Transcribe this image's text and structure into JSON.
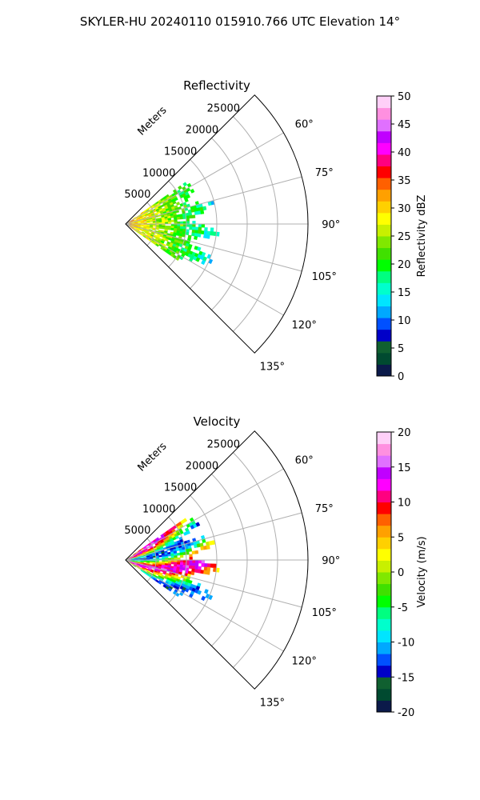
{
  "figure_title": "SKYLER-HU  20240110  015910.766 UTC Elevation 14°",
  "chart_data": [
    {
      "type": "ppi-sector",
      "title": "Reflectivity",
      "range_label": "Meters",
      "range_ticks": [
        5000,
        10000,
        15000,
        20000,
        25000
      ],
      "range_max": 30000,
      "azimuth_span": [
        45,
        135
      ],
      "azimuth_ticks": [
        "60°",
        "75°",
        "90°",
        "105°",
        "120°",
        "135°"
      ],
      "data_extent_m": 15000,
      "colorbar": {
        "label": "Reflectivity dBZ",
        "min": 0,
        "max": 50,
        "ticks": [
          0,
          5,
          10,
          15,
          20,
          25,
          30,
          35,
          40,
          45,
          50
        ],
        "colors": [
          "#0b1a4a",
          "#004a30",
          "#106030",
          "#0000c8",
          "#0050ff",
          "#00a8ff",
          "#00e5ff",
          "#00ffcc",
          "#00ff80",
          "#00ff00",
          "#40e000",
          "#80e800",
          "#c8f000",
          "#ffff00",
          "#ffd000",
          "#ffa000",
          "#ff6000",
          "#ff0000",
          "#ff0080",
          "#ff00ff",
          "#c000ff",
          "#e070ff",
          "#ff90e0",
          "#ffd0f8"
        ]
      }
    },
    {
      "type": "ppi-sector",
      "title": "Velocity",
      "range_label": "Meters",
      "range_ticks": [
        5000,
        10000,
        15000,
        20000,
        25000
      ],
      "range_max": 30000,
      "azimuth_span": [
        45,
        135
      ],
      "azimuth_ticks": [
        "60°",
        "75°",
        "90°",
        "105°",
        "120°",
        "135°"
      ],
      "data_extent_m": 15000,
      "colorbar": {
        "label": "Velocity (m/s)",
        "min": -20,
        "max": 20,
        "ticks": [
          -20,
          -15,
          -10,
          -5,
          0,
          5,
          10,
          15,
          20
        ],
        "colors": [
          "#0b1a4a",
          "#004a30",
          "#106030",
          "#0000c8",
          "#0050ff",
          "#00a8ff",
          "#00e5ff",
          "#00ffcc",
          "#00ff80",
          "#00ff00",
          "#40e000",
          "#80e800",
          "#c8f000",
          "#ffff00",
          "#ffd000",
          "#ffa000",
          "#ff6000",
          "#ff0000",
          "#ff0080",
          "#ff00ff",
          "#c000ff",
          "#e070ff",
          "#ff90e0",
          "#ffd0f8"
        ]
      }
    }
  ]
}
